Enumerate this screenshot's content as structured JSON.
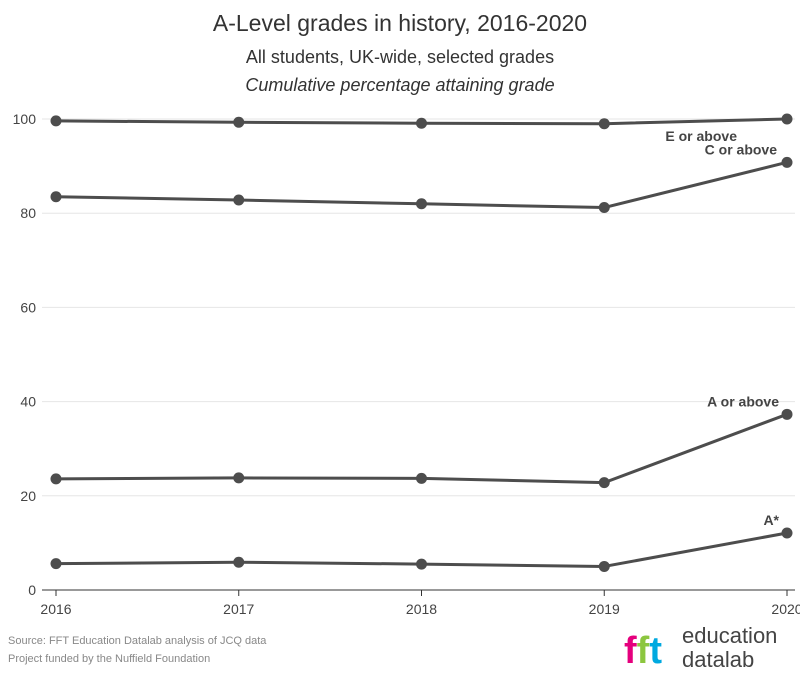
{
  "chart_data": {
    "type": "line",
    "title": "A-Level grades in history, 2016-2020",
    "subtitle": "All students, UK-wide, selected grades",
    "subtitle2": "Cumulative percentage attaining grade",
    "x": [
      "2016",
      "2017",
      "2018",
      "2019",
      "2020"
    ],
    "ylim": [
      0,
      100
    ],
    "yticks": [
      0,
      20,
      40,
      60,
      80,
      100
    ],
    "grid": true,
    "line_color": "#4d4d4d",
    "series": [
      {
        "name": "E or above",
        "values": [
          99.6,
          99.3,
          99.1,
          99.0,
          100.0
        ]
      },
      {
        "name": "C or above",
        "values": [
          83.5,
          82.8,
          82.0,
          81.2,
          90.8
        ]
      },
      {
        "name": "A or above",
        "values": [
          23.6,
          23.8,
          23.7,
          22.8,
          37.3
        ]
      },
      {
        "name": "A*",
        "values": [
          5.6,
          5.9,
          5.5,
          5.0,
          12.1
        ]
      }
    ]
  },
  "source": {
    "line1": "Source: FFT Education Datalab analysis of JCQ data",
    "line2": "Project funded by the Nuffield Foundation"
  },
  "logo": {
    "mark": "fft",
    "word1": "education",
    "word2": "datalab",
    "colors": [
      "#e5007d",
      "#8cc63f",
      "#00a9e0"
    ]
  }
}
